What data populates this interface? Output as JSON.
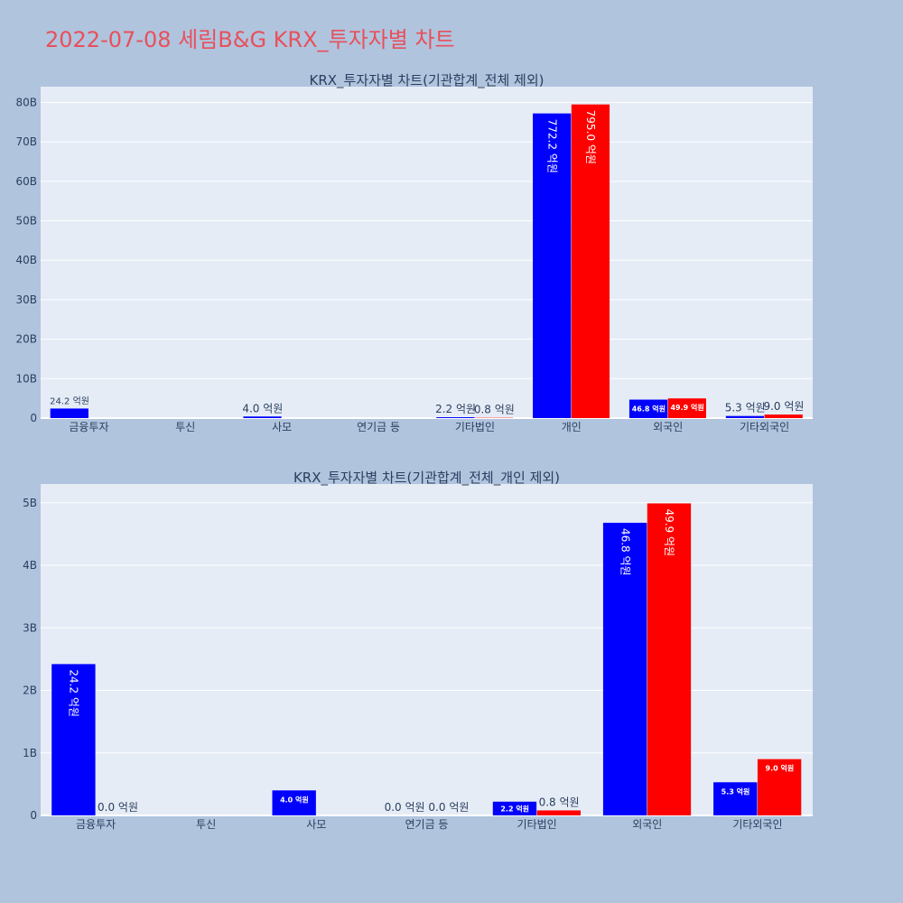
{
  "title": "2022-07-08 세림B&G KRX_투자자별 차트",
  "colors": {
    "background": "#b0c4de",
    "plot_bg": "#e5ecf6",
    "title": "#e8505b",
    "series_buy": "#0000ff",
    "series_sell": "#ff0000",
    "text": "#2a3f5f"
  },
  "chart_data": [
    {
      "type": "bar",
      "title": "KRX_투자자별 차트(기관합계_전체 제외)",
      "categories": [
        "금융투자",
        "투신",
        "사모",
        "연기금 등",
        "기타법인",
        "개인",
        "외국인",
        "기타외국인"
      ],
      "ylim": [
        0,
        84000000000
      ],
      "yticks": [
        0,
        10000000000,
        20000000000,
        30000000000,
        40000000000,
        50000000000,
        60000000000,
        70000000000,
        80000000000
      ],
      "ytick_labels": [
        "0",
        "10B",
        "20B",
        "30B",
        "40B",
        "50B",
        "60B",
        "70B",
        "80B"
      ],
      "grid": true,
      "series": [
        {
          "color": "#0000ff",
          "values": [
            2420000000,
            0,
            400000000,
            0,
            220000000,
            77220000000,
            4680000000,
            530000000
          ],
          "labels": [
            "24.2 억원",
            "",
            "4.0 억원",
            "",
            "2.2 억원",
            "772.2 억원",
            "46.8 억원",
            "5.3 억원"
          ]
        },
        {
          "color": "#ff0000",
          "values": [
            0,
            0,
            0,
            0,
            80000000,
            79500000000,
            4990000000,
            900000000
          ],
          "labels": [
            "",
            "",
            "",
            "",
            "0.8 억원",
            "795.0 억원",
            "49.9 억원",
            "9.0 억원"
          ]
        }
      ]
    },
    {
      "type": "bar",
      "title": "KRX_투자자별 차트(기관합계_전체_개인 제외)",
      "categories": [
        "금융투자",
        "투신",
        "사모",
        "연기금 등",
        "기타법인",
        "외국인",
        "기타외국인"
      ],
      "ylim": [
        0,
        5300000000
      ],
      "yticks": [
        0,
        1000000000,
        2000000000,
        3000000000,
        4000000000,
        5000000000
      ],
      "ytick_labels": [
        "0",
        "1B",
        "2B",
        "3B",
        "4B",
        "5B"
      ],
      "grid": true,
      "series": [
        {
          "color": "#0000ff",
          "values": [
            2420000000,
            0,
            400000000,
            0,
            220000000,
            4680000000,
            530000000
          ],
          "labels": [
            "24.2 억원",
            "",
            "4.0 억원",
            "0.0 억원",
            "2.2 억원",
            "46.8 억원",
            "5.3 억원"
          ]
        },
        {
          "color": "#ff0000",
          "values": [
            0,
            0,
            0,
            0,
            80000000,
            4990000000,
            900000000
          ],
          "labels": [
            "0.0 억원",
            "",
            "",
            "0.0 억원",
            "0.8 억원",
            "49.9 억원",
            "9.0 억원"
          ]
        }
      ]
    }
  ]
}
